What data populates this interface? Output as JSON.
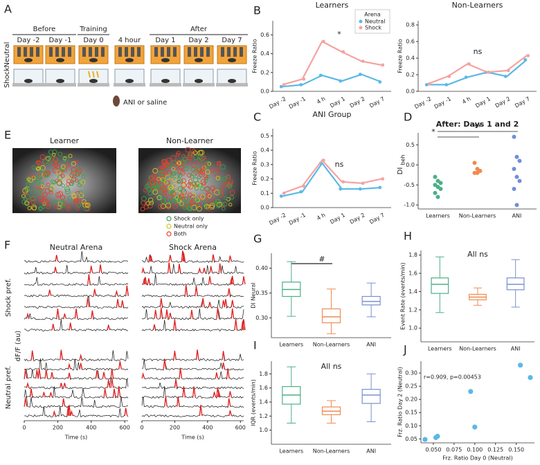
{
  "panel_a": {
    "letter": "A",
    "phases": [
      "Before",
      "Training",
      "After"
    ],
    "days": [
      "Day -2",
      "Day -1",
      "Day 0",
      "4 hour",
      "Day 1",
      "Day 2",
      "Day 7"
    ],
    "rows": [
      "Neutral",
      "Shock"
    ],
    "treatment": "ANI or saline"
  },
  "panel_e": {
    "letter": "E",
    "images": [
      "Learner",
      "Non-Learner"
    ],
    "legend": [
      {
        "label": "Shock only",
        "color": "#3aa04a"
      },
      {
        "label": "Neutral only",
        "color": "#d8c020"
      },
      {
        "label": "Both",
        "color": "#e8402a"
      }
    ]
  },
  "panel_f": {
    "letter": "F",
    "columns": [
      "Neutral Arena",
      "Shock Arena"
    ],
    "groups": [
      "Shock pref.",
      "Neutral pref."
    ],
    "ylabel": "dF/F (au)",
    "xlabel": "Time (s)",
    "xlim": [
      0,
      620
    ],
    "xticks": [
      0,
      200,
      400,
      600
    ]
  },
  "chart_data": [
    {
      "panel": "B",
      "type": "line",
      "title": "Learners",
      "ylabel": "Freeze Ratio",
      "categories": [
        "Day -2",
        "Day -1",
        "4 h",
        "Day 1",
        "Day 2",
        "Day 7"
      ],
      "ylim": [
        0,
        0.75
      ],
      "yticks": [
        {
          "value": 0,
          "label": "0.0"
        },
        0.2,
        0.4,
        0.6
      ],
      "legend": "upper right",
      "legend_title": "Arena",
      "series": [
        {
          "name": "Neutral",
          "color": "#5bb8e8",
          "values": [
            0.05,
            0.07,
            0.17,
            0.11,
            0.18,
            0.1
          ]
        },
        {
          "name": "Shock",
          "color": "#f4a39f",
          "values": [
            0.07,
            0.13,
            0.53,
            0.42,
            0.32,
            0.28
          ]
        }
      ],
      "annotations": [
        "*"
      ]
    },
    {
      "type": "line",
      "title": "Non-Learners",
      "ylabel": "Freeze Ratio",
      "categories": [
        "Day -2",
        "Day -1",
        "4 h",
        "Day 1",
        "Day 2",
        "Day 7"
      ],
      "ylim": [
        0,
        0.85
      ],
      "yticks": [
        {
          "value": 0,
          "label": "0.0"
        },
        0.2,
        0.4,
        0.6,
        0.8
      ],
      "series": [
        {
          "color": "#5bb8e8",
          "values": [
            0.08,
            0.08,
            0.17,
            0.23,
            0.18,
            0.38
          ]
        },
        {
          "color": "#f4a39f",
          "values": [
            0.09,
            0.18,
            0.33,
            0.23,
            0.25,
            0.43
          ]
        }
      ],
      "annotations": [
        "ns"
      ]
    },
    {
      "panel": "C",
      "type": "line",
      "title": "ANI Group",
      "ylabel": "Freeze Ratio",
      "categories": [
        "Day -2",
        "Day -1",
        "4 h",
        "Day 1",
        "Day 2",
        "Day 7"
      ],
      "ylim": [
        0,
        0.55
      ],
      "yticks": [
        {
          "value": 0,
          "label": "0.0"
        },
        0.1,
        0.2,
        0.3,
        0.4,
        0.5
      ],
      "series": [
        {
          "color": "#5bb8e8",
          "values": [
            0.08,
            0.11,
            0.31,
            0.13,
            0.13,
            0.14
          ]
        },
        {
          "color": "#f4a39f",
          "values": [
            0.1,
            0.15,
            0.33,
            0.18,
            0.17,
            0.2
          ]
        }
      ],
      "annotations": [
        "ns"
      ]
    },
    {
      "panel": "D",
      "type": "strip",
      "title": "After: Days 1 and 2",
      "ylabel": "DI",
      "ylabel_sub": "beh",
      "categories": [
        "Learners",
        "Non-Learners",
        "ANI"
      ],
      "colors": [
        "#4caf87",
        "#f08a50",
        "#6f8fd8"
      ],
      "values": [
        [
          -0.3,
          -0.4,
          -0.45,
          -0.5,
          -0.55,
          -0.6,
          -0.7,
          -0.8
        ],
        [
          0.05,
          -0.1,
          -0.15,
          -0.2,
          -0.2
        ],
        [
          0.7,
          0.2,
          0.1,
          -0.1,
          -0.3,
          -0.4,
          -0.6,
          -1.0
        ]
      ],
      "ylim": [
        -1.1,
        0.8
      ],
      "yticks": [
        {
          "value": -1,
          "label": "-1.0"
        },
        -0.5,
        {
          "value": 0,
          "label": "0.0"
        },
        0.5
      ],
      "annotations": [
        "*",
        "**"
      ]
    },
    {
      "panel": "G",
      "type": "box",
      "ylabel": "DI Neural",
      "categories": [
        "Learners",
        "Non-Learners",
        "ANI"
      ],
      "colors": [
        "#4caf87",
        "#f08a50",
        "#7b8fd0"
      ],
      "boxes": [
        {
          "whislo": 0.303,
          "q1": 0.343,
          "med": 0.357,
          "q3": 0.372,
          "whishi": 0.413
        },
        {
          "whislo": 0.268,
          "q1": 0.29,
          "med": 0.302,
          "q3": 0.318,
          "whishi": 0.358
        },
        {
          "whislo": 0.302,
          "q1": 0.326,
          "med": 0.333,
          "q3": 0.343,
          "whishi": 0.37
        }
      ],
      "ylim": [
        0.26,
        0.43
      ],
      "yticks": [
        {
          "value": 0.3,
          "label": "0.30"
        },
        {
          "value": 0.35,
          "label": "0.35"
        },
        {
          "value": 0.4,
          "label": "0.40"
        }
      ],
      "annotations": [
        "#"
      ]
    },
    {
      "panel": "H",
      "type": "box",
      "title": "All ns",
      "ylabel": "Event Rate (events/min)",
      "categories": [
        "Learners",
        "Non-Learners",
        "ANI"
      ],
      "colors": [
        "#4caf87",
        "#f08a50",
        "#7b8fd0"
      ],
      "boxes": [
        {
          "whislo": 1.17,
          "q1": 1.38,
          "med": 1.48,
          "q3": 1.55,
          "whishi": 1.78
        },
        {
          "whislo": 1.25,
          "q1": 1.31,
          "med": 1.34,
          "q3": 1.37,
          "whishi": 1.44
        },
        {
          "whislo": 1.23,
          "q1": 1.42,
          "med": 1.48,
          "q3": 1.55,
          "whishi": 1.75
        }
      ],
      "ylim": [
        0.85,
        1.85
      ],
      "yticks": [
        {
          "value": 1,
          "label": "1.0"
        },
        1.2,
        1.4,
        1.6,
        1.8
      ]
    },
    {
      "panel": "I",
      "type": "box",
      "title": "All ns",
      "ylabel": "IQR (events/min)",
      "categories": [
        "Learners",
        "Non-Learners",
        "ANI"
      ],
      "colors": [
        "#4caf87",
        "#f08a50",
        "#7b8fd0"
      ],
      "boxes": [
        {
          "whislo": 1.1,
          "q1": 1.37,
          "med": 1.5,
          "q3": 1.62,
          "whishi": 1.9
        },
        {
          "whislo": 1.1,
          "q1": 1.22,
          "med": 1.27,
          "q3": 1.33,
          "whishi": 1.42
        },
        {
          "whislo": 1.12,
          "q1": 1.38,
          "med": 1.5,
          "q3": 1.58,
          "whishi": 1.8
        }
      ],
      "ylim": [
        0.8,
        1.98
      ],
      "yticks": [
        {
          "value": 1,
          "label": "1.0"
        },
        1.2,
        1.4,
        1.6,
        1.8
      ]
    },
    {
      "panel": "J",
      "type": "scatter",
      "xlabel": "Frz. Ratio Day 0 (Neutral)",
      "ylabel": "Frz. Ratio Day 2 (Neutral)",
      "color": "#5bb8e8",
      "x": [
        0.04,
        0.053,
        0.055,
        0.095,
        0.1,
        0.155,
        0.167
      ],
      "y": [
        0.048,
        0.055,
        0.06,
        0.23,
        0.095,
        0.33,
        0.283
      ],
      "xlim": [
        0.035,
        0.172
      ],
      "xticks": [
        {
          "value": 0.05,
          "label": "0.050"
        },
        {
          "value": 0.075,
          "label": "0.075"
        },
        {
          "value": 0.1,
          "label": "0.100"
        },
        {
          "value": 0.125,
          "label": "0.125"
        },
        {
          "value": 0.15,
          "label": "0.150"
        }
      ],
      "ylim": [
        0.035,
        0.345
      ],
      "yticks": [
        0.05,
        {
          "value": 0.1,
          "label": "0.10"
        },
        0.15,
        {
          "value": 0.2,
          "label": "0.20"
        },
        0.25,
        {
          "value": 0.3,
          "label": "0.30"
        }
      ],
      "annotations": [
        "r=0.909, p=0.00453"
      ]
    }
  ]
}
